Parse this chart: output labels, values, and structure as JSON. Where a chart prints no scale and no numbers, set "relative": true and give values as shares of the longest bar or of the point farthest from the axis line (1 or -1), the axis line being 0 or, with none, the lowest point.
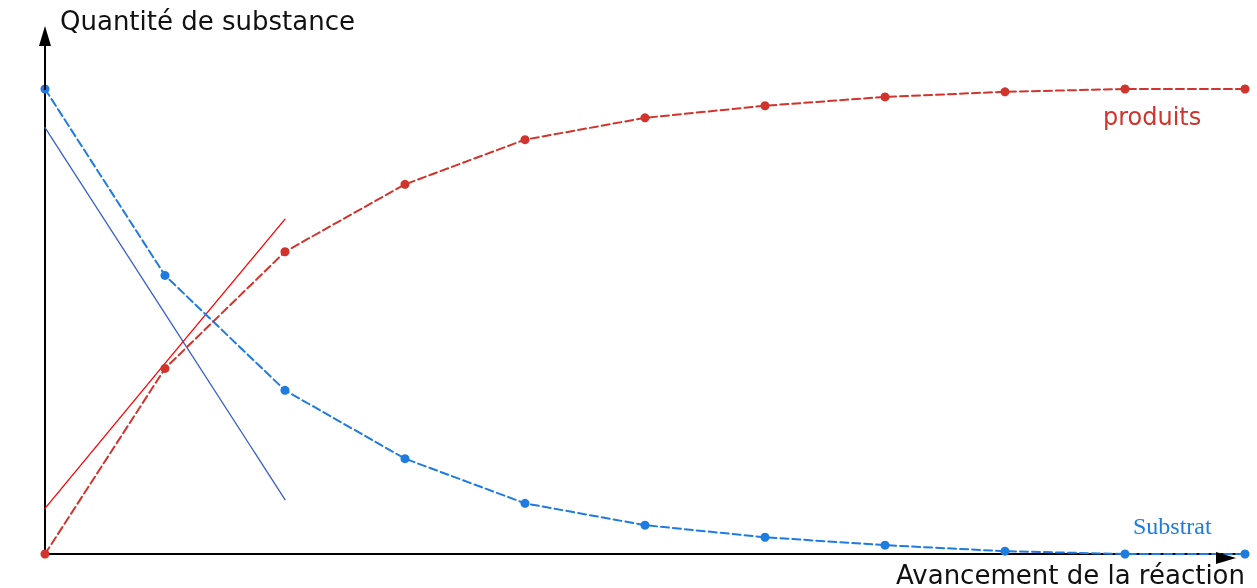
{
  "chart_data": {
    "type": "line",
    "relative": true,
    "xlabel": "Avancement de la réaction",
    "ylabel": "Quantité de substance",
    "categories": [
      null,
      null,
      null,
      null,
      null,
      null,
      null,
      null,
      null,
      null,
      null
    ],
    "grid": false,
    "marker": "circle",
    "line_style": "dashed",
    "series": [
      {
        "name": "Substrat",
        "color": "#1e7be0",
        "values": [
          1,
          0.599,
          0.352,
          0.205,
          0.109,
          0.062,
          0.036,
          0.019,
          0.006,
          0,
          0
        ]
      },
      {
        "name": "produits",
        "color": "#d0342c",
        "values": [
          0,
          0.399,
          0.65,
          0.795,
          0.891,
          0.938,
          0.964,
          0.983,
          0.994,
          1,
          1
        ]
      },
      {
        "type": "line",
        "color": "#3a5fcd",
        "marker": "none",
        "line_style": "solid",
        "values": [
          0.917,
          0.517,
          0.117,
          null,
          null,
          null,
          null,
          null,
          null,
          null,
          null
        ]
      },
      {
        "type": "line",
        "color": "#ff0000",
        "marker": "none",
        "line_style": "solid",
        "values": [
          0.098,
          0.41,
          0.72,
          null,
          null,
          null,
          null,
          null,
          null,
          null,
          null
        ]
      }
    ]
  }
}
